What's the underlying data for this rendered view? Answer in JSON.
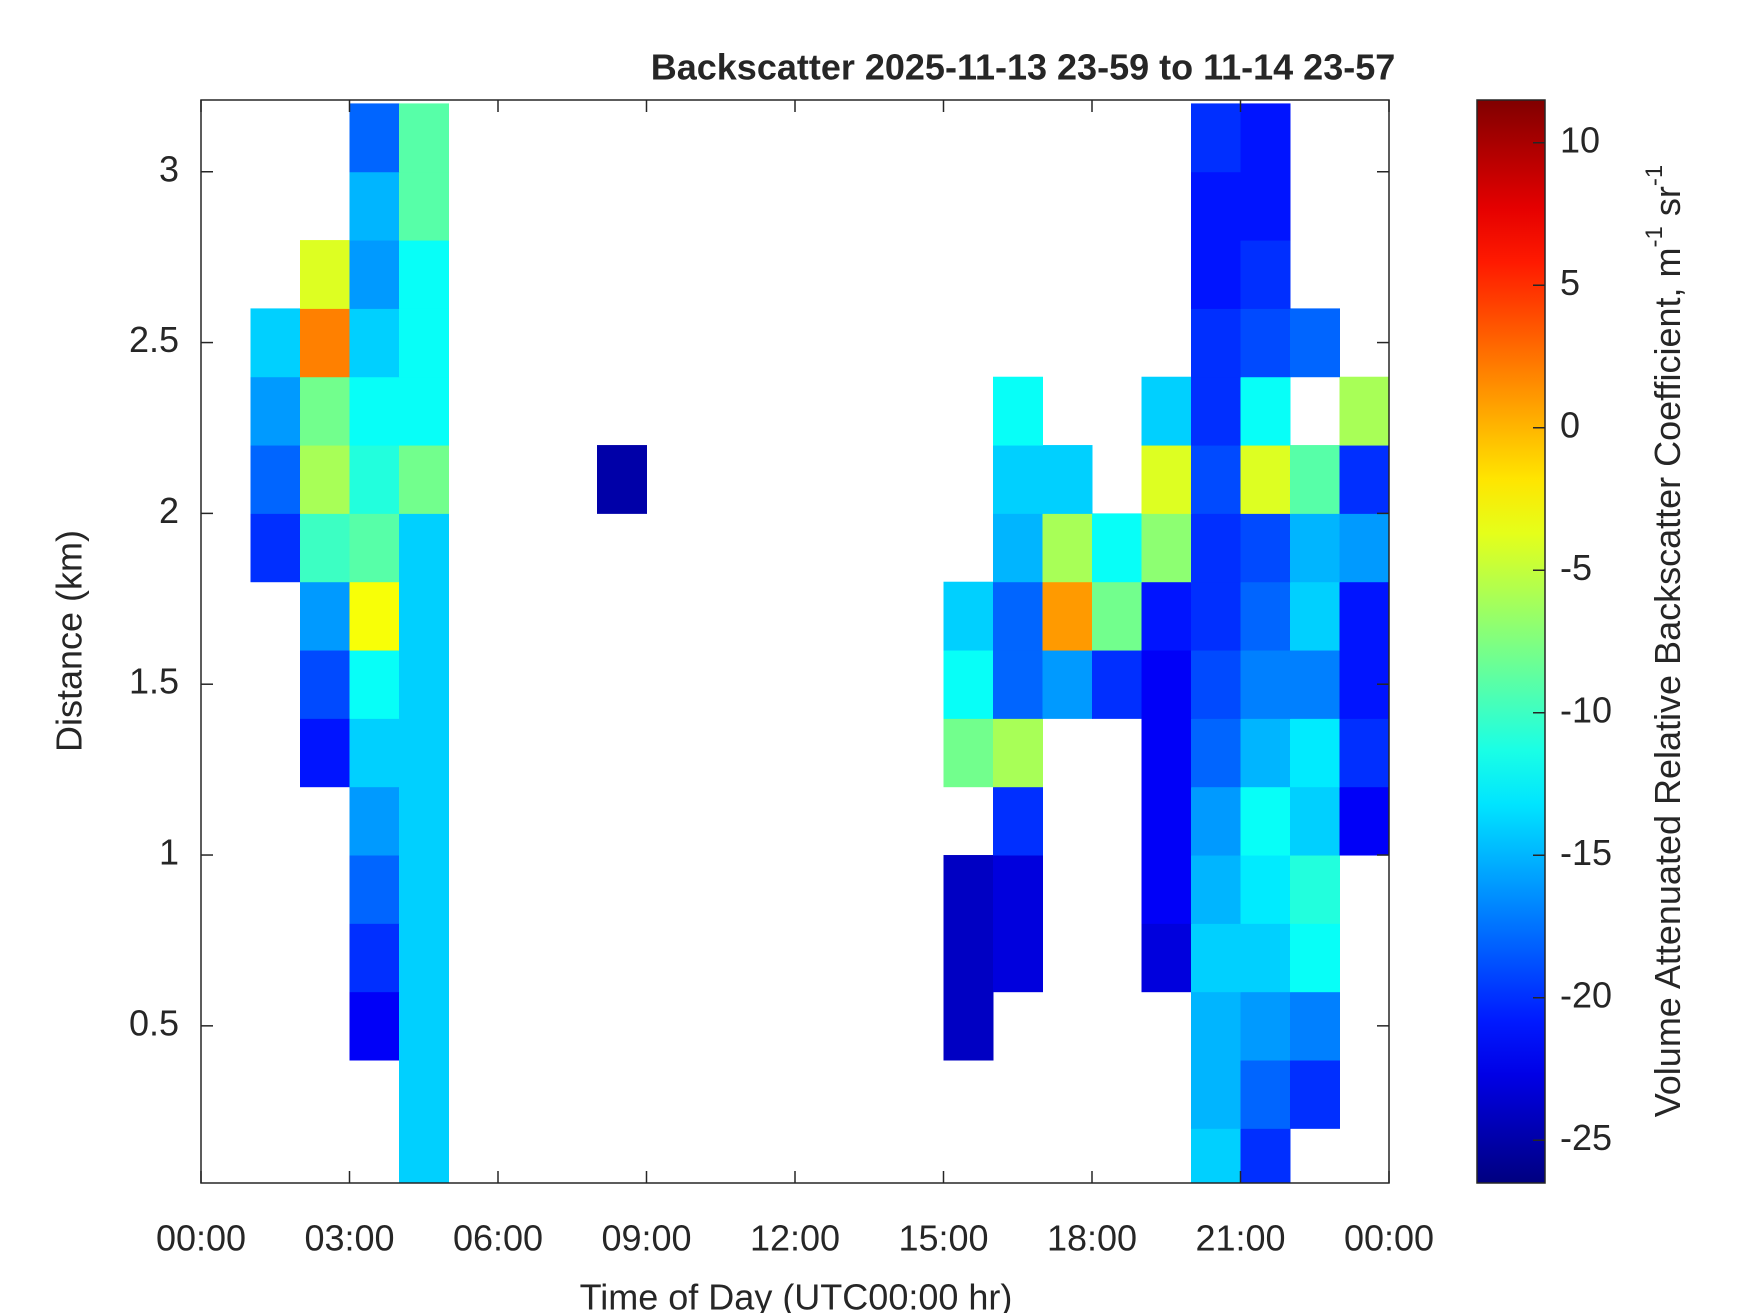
{
  "chart_data": {
    "type": "heatmap",
    "title": "Backscatter 2025-11-13 23-59 to 11-14 23-57",
    "x_label": "Time of Day (UTC00:00 hr)",
    "y_label": "Distance (km)",
    "colorbar_label": [
      "Volume Attenuated Relative Backscatter Coefficient, m",
      "-1",
      " sr",
      "-1"
    ],
    "colormap": "jet",
    "x": [
      0.5,
      1.5,
      2.5,
      3.5,
      4.5,
      5.5,
      6.5,
      7.5,
      8.5,
      9.5,
      10.5,
      11.5,
      12.5,
      13.5,
      14.5,
      15.5,
      16.5,
      17.5,
      18.5,
      19.5,
      20.5,
      21.5,
      22.5,
      23.5
    ],
    "y": [
      0.1,
      0.3,
      0.5,
      0.7,
      0.9,
      1.1,
      1.3,
      1.5,
      1.7,
      1.9,
      2.1,
      2.3,
      2.5,
      2.7,
      2.9,
      3.1
    ],
    "z": [
      [
        null,
        null,
        null,
        null,
        -14,
        null,
        null,
        null,
        null,
        null,
        null,
        null,
        null,
        null,
        null,
        null,
        null,
        null,
        null,
        null,
        -14,
        -20,
        null,
        null
      ],
      [
        null,
        null,
        null,
        null,
        -14,
        null,
        null,
        null,
        null,
        null,
        null,
        null,
        null,
        null,
        null,
        null,
        null,
        null,
        null,
        null,
        -15,
        -18,
        -20,
        null
      ],
      [
        null,
        null,
        null,
        -22,
        -14,
        null,
        null,
        null,
        null,
        null,
        null,
        null,
        null,
        null,
        null,
        -24,
        null,
        null,
        null,
        null,
        -15,
        -16,
        -17,
        null
      ],
      [
        null,
        null,
        null,
        -20,
        -14,
        null,
        null,
        null,
        null,
        null,
        null,
        null,
        null,
        null,
        null,
        -24,
        -23,
        null,
        null,
        -23,
        -14,
        -14,
        -12,
        null
      ],
      [
        null,
        null,
        null,
        -18,
        -14,
        null,
        null,
        null,
        null,
        null,
        null,
        null,
        null,
        null,
        null,
        -24,
        -23,
        null,
        null,
        -22,
        -15,
        -13,
        -11,
        null
      ],
      [
        null,
        null,
        null,
        -16,
        -14,
        null,
        null,
        null,
        null,
        null,
        null,
        null,
        null,
        null,
        null,
        null,
        -20,
        null,
        null,
        -22,
        -16,
        -12,
        -14,
        -22
      ],
      [
        null,
        null,
        -21,
        -14,
        -14,
        null,
        null,
        null,
        null,
        null,
        null,
        null,
        null,
        null,
        null,
        -8,
        -6,
        null,
        null,
        -22,
        -18,
        -15,
        -13,
        -20
      ],
      [
        null,
        null,
        -19,
        -12,
        -14,
        null,
        null,
        null,
        null,
        null,
        null,
        null,
        null,
        null,
        null,
        -12,
        -18,
        -16,
        -20,
        -22,
        -19,
        -17,
        -17,
        -21
      ],
      [
        null,
        null,
        -16,
        -3,
        -14,
        null,
        null,
        null,
        null,
        null,
        null,
        null,
        null,
        null,
        null,
        -14,
        -18,
        1,
        -8,
        -21,
        -20,
        -18,
        -14,
        -21
      ],
      [
        null,
        -20,
        -10,
        -9,
        -14,
        null,
        null,
        null,
        null,
        null,
        null,
        null,
        null,
        null,
        null,
        null,
        -15,
        -6,
        -12,
        -7,
        -20,
        -19,
        -15,
        -16
      ],
      [
        null,
        -18,
        -6,
        -11,
        -8,
        null,
        null,
        null,
        -25,
        null,
        null,
        null,
        null,
        null,
        null,
        null,
        -14,
        -14,
        null,
        -4,
        -19,
        -4,
        -9,
        -20
      ],
      [
        null,
        -16,
        -8,
        -12,
        -12,
        null,
        null,
        null,
        null,
        null,
        null,
        null,
        null,
        null,
        null,
        null,
        -12,
        null,
        null,
        -14,
        -20,
        -12,
        null,
        -6
      ],
      [
        null,
        -14,
        2,
        -14,
        -12,
        null,
        null,
        null,
        null,
        null,
        null,
        null,
        null,
        null,
        null,
        null,
        null,
        null,
        null,
        null,
        -20,
        -19,
        -18,
        null
      ],
      [
        null,
        null,
        -4,
        -16,
        -12,
        null,
        null,
        null,
        null,
        null,
        null,
        null,
        null,
        null,
        null,
        null,
        null,
        null,
        null,
        null,
        -21,
        -20,
        null,
        null
      ],
      [
        null,
        null,
        null,
        -15,
        -9,
        null,
        null,
        null,
        null,
        null,
        null,
        null,
        null,
        null,
        null,
        null,
        null,
        null,
        null,
        null,
        -21,
        -21,
        null,
        null
      ],
      [
        null,
        null,
        null,
        -18,
        -9,
        null,
        null,
        null,
        null,
        null,
        null,
        null,
        null,
        null,
        null,
        null,
        null,
        null,
        null,
        null,
        -20,
        -21,
        null,
        null
      ]
    ],
    "xlim": [
      0,
      24
    ],
    "xticks": [
      {
        "value": 0,
        "label": "00:00"
      },
      {
        "value": 3,
        "label": "03:00"
      },
      {
        "value": 6,
        "label": "06:00"
      },
      {
        "value": 9,
        "label": "09:00"
      },
      {
        "value": 12,
        "label": "12:00"
      },
      {
        "value": 15,
        "label": "15:00"
      },
      {
        "value": 18,
        "label": "18:00"
      },
      {
        "value": 21,
        "label": "21:00"
      },
      {
        "value": 24,
        "label": "00:00"
      }
    ],
    "ylim": [
      0.04,
      3.21
    ],
    "yticks": [
      0.5,
      1,
      1.5,
      2,
      2.5,
      3
    ],
    "clim": [
      -26.5,
      11.5
    ],
    "cticks": [
      -25,
      -20,
      -15,
      -10,
      -5,
      0,
      5,
      10
    ]
  }
}
